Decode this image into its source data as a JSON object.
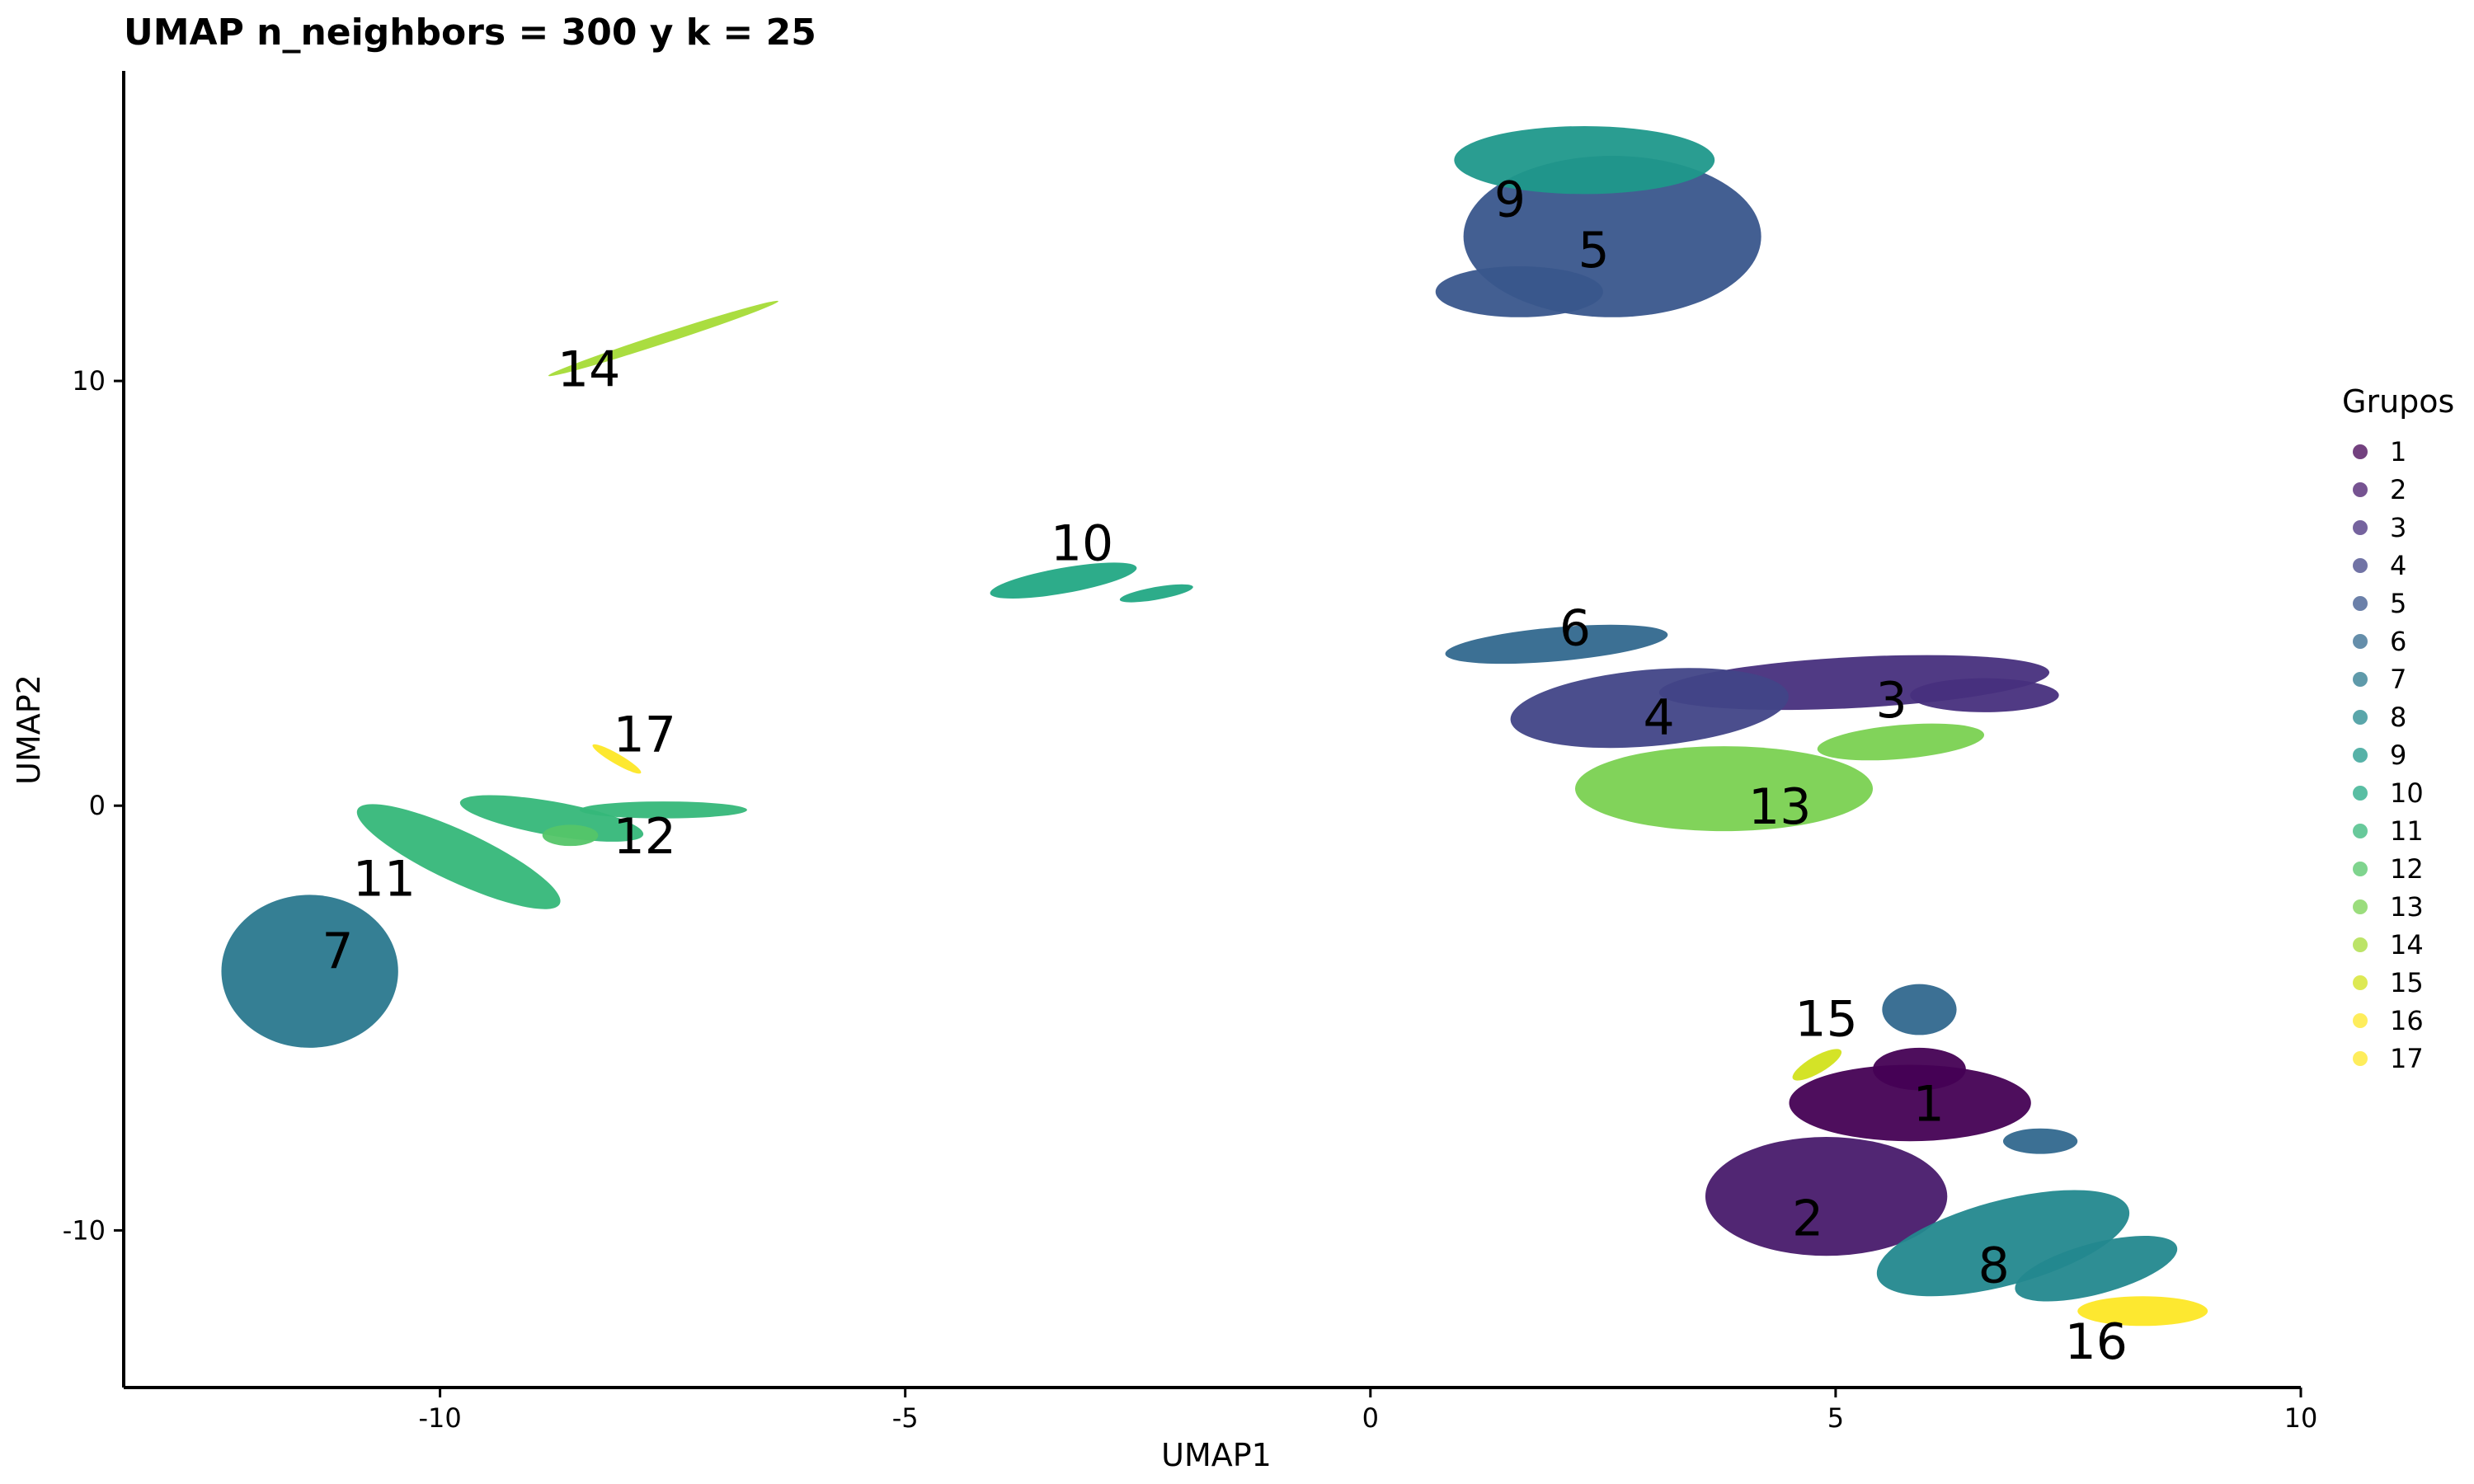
{
  "chart_data": {
    "type": "scatter",
    "title": "UMAP n_neighbors = 300 y k = 25",
    "xlabel": "UMAP1",
    "ylabel": "UMAP2",
    "xlim": [
      -13.4,
      10
    ],
    "ylim": [
      -13.7,
      17.3
    ],
    "xticks": [
      -10,
      -5,
      0,
      5,
      10
    ],
    "yticks": [
      -10,
      0,
      10
    ],
    "x_tick_labels": [
      "-10",
      "-5",
      "0",
      "5",
      "10"
    ],
    "y_tick_labels": [
      "-10",
      "0",
      "10"
    ],
    "grid": false,
    "legend": {
      "title": "Grupos",
      "position": "right"
    },
    "colors": {
      "1": "#440154",
      "2": "#481a6c",
      "3": "#472f7d",
      "4": "#414487",
      "5": "#39568c",
      "6": "#31688e",
      "7": "#2a788e",
      "8": "#23888e",
      "9": "#1f988b",
      "10": "#22a884",
      "11": "#35b779",
      "12": "#54c568",
      "13": "#7ad151",
      "14": "#a5db36",
      "15": "#d2e21b",
      "16": "#fde725",
      "17": "#fde725"
    },
    "series": [
      {
        "name": "1",
        "label_pos": [
          6.0,
          -7.1
        ],
        "blobs": [
          [
            5.8,
            -7.0,
            1.3,
            0.9,
            0
          ],
          [
            5.9,
            -6.2,
            0.5,
            0.5,
            0
          ]
        ]
      },
      {
        "name": "2",
        "label_pos": [
          4.7,
          -9.8
        ],
        "blobs": [
          [
            4.9,
            -9.2,
            1.3,
            1.4,
            0
          ]
        ]
      },
      {
        "name": "3",
        "label_pos": [
          5.6,
          2.4
        ],
        "blobs": [
          [
            5.2,
            2.9,
            2.1,
            0.6,
            -3
          ],
          [
            6.6,
            2.6,
            0.8,
            0.4,
            0
          ]
        ]
      },
      {
        "name": "4",
        "label_pos": [
          3.1,
          2.0
        ],
        "blobs": [
          [
            3.0,
            2.3,
            1.5,
            0.9,
            -5
          ]
        ]
      },
      {
        "name": "5",
        "label_pos": [
          2.4,
          13.0
        ],
        "blobs": [
          [
            2.6,
            13.4,
            1.6,
            1.9,
            0
          ],
          [
            1.6,
            12.1,
            0.9,
            0.6,
            0
          ]
        ]
      },
      {
        "name": "6",
        "label_pos": [
          2.2,
          4.1
        ],
        "blobs": [
          [
            2.0,
            3.8,
            1.2,
            0.4,
            -5
          ],
          [
            5.9,
            -4.8,
            0.4,
            0.6,
            0
          ],
          [
            7.2,
            -7.9,
            0.4,
            0.3,
            0
          ]
        ]
      },
      {
        "name": "7",
        "label_pos": [
          -11.1,
          -3.5
        ],
        "blobs": [
          [
            -11.4,
            -3.9,
            0.95,
            1.8,
            0
          ]
        ]
      },
      {
        "name": "8",
        "label_pos": [
          6.7,
          -10.9
        ],
        "blobs": [
          [
            6.8,
            -10.3,
            1.4,
            1.0,
            -15
          ],
          [
            7.8,
            -10.9,
            0.9,
            0.6,
            -15
          ]
        ]
      },
      {
        "name": "9",
        "label_pos": [
          1.5,
          14.2
        ],
        "blobs": [
          [
            2.3,
            15.2,
            1.4,
            0.8,
            0
          ]
        ]
      },
      {
        "name": "10",
        "label_pos": [
          -3.1,
          6.1
        ],
        "blobs": [
          [
            -3.3,
            5.3,
            0.8,
            0.3,
            -10
          ],
          [
            -2.3,
            5.0,
            0.4,
            0.15,
            -10
          ]
        ]
      },
      {
        "name": "11",
        "label_pos": [
          -10.6,
          -1.8
        ],
        "blobs": [
          [
            -9.8,
            -1.2,
            1.2,
            0.6,
            25
          ],
          [
            -8.8,
            -0.3,
            1.0,
            0.4,
            10
          ],
          [
            -7.6,
            -0.1,
            0.9,
            0.2,
            0
          ]
        ]
      },
      {
        "name": "12",
        "label_pos": [
          -7.8,
          -0.8
        ],
        "blobs": [
          [
            -8.6,
            -0.7,
            0.3,
            0.25,
            0
          ]
        ]
      },
      {
        "name": "13",
        "label_pos": [
          4.4,
          -0.1
        ],
        "blobs": [
          [
            3.8,
            0.4,
            1.6,
            1.0,
            0
          ],
          [
            5.7,
            1.5,
            0.9,
            0.4,
            -5
          ]
        ]
      },
      {
        "name": "14",
        "label_pos": [
          -8.4,
          10.2
        ],
        "blobs": [
          [
            -7.6,
            11.0,
            1.3,
            0.12,
            -18
          ]
        ]
      },
      {
        "name": "15",
        "label_pos": [
          4.9,
          -5.1
        ],
        "blobs": [
          [
            4.8,
            -6.1,
            0.3,
            0.2,
            -30
          ]
        ]
      },
      {
        "name": "16",
        "label_pos": [
          7.8,
          -12.7
        ],
        "blobs": [
          [
            8.3,
            -11.9,
            0.7,
            0.35,
            0
          ]
        ]
      },
      {
        "name": "17",
        "label_pos": [
          -7.8,
          1.6
        ],
        "blobs": [
          [
            -8.1,
            1.1,
            0.3,
            0.12,
            30
          ]
        ]
      }
    ]
  }
}
